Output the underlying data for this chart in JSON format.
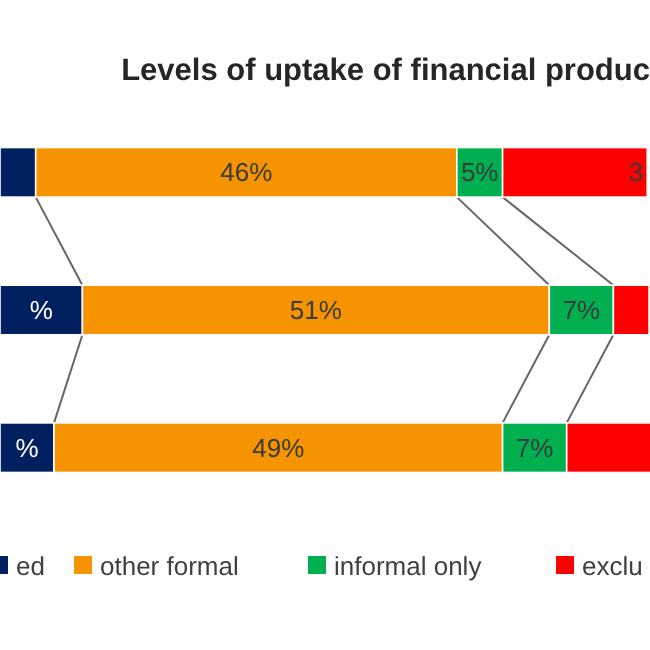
{
  "chart_data": {
    "type": "bar",
    "orientation": "horizontal",
    "stacked": true,
    "title": "Levels of uptake of financial produc",
    "categories": [
      null,
      null,
      null
    ],
    "xlim": [
      0,
      71
    ],
    "tick_labels": false,
    "legend": "bottom",
    "annotations": [
      "3"
    ],
    "series": [
      {
        "name": "ed",
        "color": "#002060",
        "values": [
          3.9,
          9,
          5.9
        ],
        "value_labels": [
          null,
          "%",
          "%"
        ]
      },
      {
        "name": "other formal",
        "color": "#f59400",
        "values": [
          46,
          51,
          49
        ],
        "value_labels": [
          "46%",
          "51%",
          "49%"
        ]
      },
      {
        "name": "informal only",
        "color": "#00b050",
        "values": [
          5,
          7,
          7
        ],
        "value_labels": [
          "5%",
          "7%",
          "7%"
        ]
      },
      {
        "name": "exclu",
        "color": "#ff0000",
        "values": [
          15.8,
          3.9,
          9.2
        ]
      }
    ]
  }
}
